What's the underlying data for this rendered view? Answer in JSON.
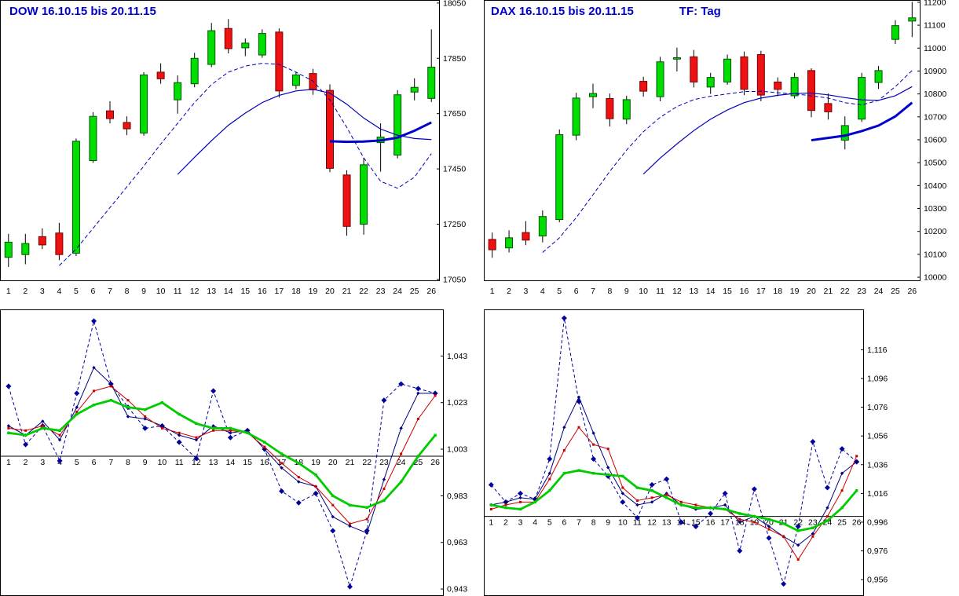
{
  "ui": {
    "background": "#ffffff",
    "title_color": "#0000cc",
    "up_color": "#00dd00",
    "down_color": "#ee1111",
    "wick_color": "#000000",
    "ma_color": "#0000bb"
  },
  "chart_data": [
    {
      "name": "dow-price",
      "type": "candlestick",
      "title": "DOW 16.10.15 bis 20.11.15",
      "x_labels": [
        "1",
        "2",
        "3",
        "4",
        "5",
        "6",
        "7",
        "8",
        "9",
        "10",
        "11",
        "12",
        "13",
        "14",
        "15",
        "16",
        "17",
        "18",
        "19",
        "20",
        "21",
        "22",
        "23",
        "24",
        "25",
        "26"
      ],
      "y_min": 17044,
      "y_max": 18061,
      "y_ticks": [
        {
          "v": 18050,
          "label": "18050"
        },
        {
          "v": 17850,
          "label": "17850"
        },
        {
          "v": 17650,
          "label": "17650"
        },
        {
          "v": 17450,
          "label": "17450"
        },
        {
          "v": 17250,
          "label": "17250"
        },
        {
          "v": 17050,
          "label": "17050"
        }
      ],
      "candles": {
        "open": [
          17130,
          17140,
          17205,
          17218,
          17145,
          17480,
          17660,
          17618,
          17580,
          17800,
          17700,
          17758,
          17828,
          17958,
          17888,
          17862,
          17945,
          17752,
          17795,
          17734,
          17428,
          17250,
          17545,
          17500,
          17728,
          17705
        ],
        "high": [
          17215,
          17215,
          17235,
          17255,
          17560,
          17655,
          17695,
          17640,
          17800,
          17832,
          17788,
          17870,
          17978,
          17992,
          17922,
          17955,
          17958,
          17800,
          17812,
          17756,
          17445,
          17490,
          17615,
          17735,
          17778,
          17955
        ],
        "low": [
          17095,
          17105,
          17160,
          17120,
          17135,
          17472,
          17615,
          17572,
          17570,
          17758,
          17650,
          17745,
          17818,
          17868,
          17858,
          17852,
          17708,
          17738,
          17718,
          17438,
          17208,
          17212,
          17440,
          17488,
          17698,
          17692
        ],
        "close": [
          17185,
          17180,
          17175,
          17140,
          17550,
          17640,
          17632,
          17595,
          17790,
          17776,
          17762,
          17850,
          17950,
          17885,
          17905,
          17940,
          17732,
          17790,
          17736,
          17452,
          17242,
          17465,
          17565,
          17718,
          17745,
          17818
        ]
      },
      "overlays": [
        {
          "name": "ma-dashed",
          "style": "dashed",
          "width": 1,
          "color": "#0000bb",
          "values": [
            null,
            null,
            null,
            17100,
            17160,
            17235,
            17310,
            17385,
            17460,
            17540,
            17615,
            17690,
            17755,
            17800,
            17822,
            17832,
            17828,
            17800,
            17768,
            17700,
            17600,
            17490,
            17405,
            17380,
            17420,
            17505
          ]
        },
        {
          "name": "ma-solid",
          "style": "solid",
          "width": 1.2,
          "color": "#0000bb",
          "values": [
            null,
            null,
            null,
            null,
            null,
            null,
            null,
            null,
            null,
            null,
            17430,
            17492,
            17552,
            17608,
            17652,
            17690,
            17716,
            17732,
            17738,
            17724,
            17684,
            17634,
            17594,
            17572,
            17560,
            17556
          ]
        },
        {
          "name": "ma-thick",
          "style": "solid",
          "width": 3,
          "color": "#0000cc",
          "values": [
            null,
            null,
            null,
            null,
            null,
            null,
            null,
            null,
            null,
            null,
            null,
            null,
            null,
            null,
            null,
            null,
            null,
            null,
            null,
            17550,
            17548,
            17549,
            17553,
            17563,
            17588,
            17618
          ]
        }
      ]
    },
    {
      "name": "dax-price",
      "type": "candlestick",
      "title": "DAX 16.10.15 bis 20.11.15",
      "subtitle": "TF: Tag",
      "x_labels": [
        "1",
        "2",
        "3",
        "4",
        "5",
        "6",
        "7",
        "8",
        "9",
        "10",
        "11",
        "12",
        "13",
        "14",
        "15",
        "16",
        "17",
        "18",
        "19",
        "20",
        "21",
        "22",
        "23",
        "24",
        "25",
        "26"
      ],
      "y_min": 9983,
      "y_max": 11210,
      "y_ticks": [
        {
          "v": 11200,
          "label": "11200"
        },
        {
          "v": 11100,
          "label": "11100"
        },
        {
          "v": 11000,
          "label": "11000"
        },
        {
          "v": 10900,
          "label": "10900"
        },
        {
          "v": 10800,
          "label": "10800"
        },
        {
          "v": 10700,
          "label": "10700"
        },
        {
          "v": 10600,
          "label": "10600"
        },
        {
          "v": 10500,
          "label": "10500"
        },
        {
          "v": 10400,
          "label": "10400"
        },
        {
          "v": 10300,
          "label": "10300"
        },
        {
          "v": 10200,
          "label": "10200"
        },
        {
          "v": 10100,
          "label": "10100"
        },
        {
          "v": 10000,
          "label": "10000"
        }
      ],
      "candles": {
        "open": [
          10165,
          10128,
          10195,
          10180,
          10252,
          10620,
          10788,
          10780,
          10690,
          10855,
          10788,
          10952,
          10962,
          10830,
          10852,
          10962,
          10972,
          10852,
          10792,
          10902,
          10758,
          10598,
          10690,
          10850,
          11038,
          11118
        ],
        "high": [
          10195,
          10205,
          10245,
          10292,
          10645,
          10805,
          10845,
          10802,
          10792,
          10875,
          10962,
          11002,
          10992,
          10892,
          10972,
          10985,
          10988,
          10872,
          10892,
          10912,
          10802,
          10702,
          10892,
          10922,
          11122,
          11202
        ],
        "low": [
          10085,
          10108,
          10140,
          10152,
          10240,
          10598,
          10738,
          10658,
          10668,
          10788,
          10768,
          10898,
          10828,
          10800,
          10840,
          10795,
          10768,
          10790,
          10780,
          10698,
          10688,
          10558,
          10678,
          10822,
          11018,
          11048
        ],
        "close": [
          10120,
          10172,
          10162,
          10265,
          10622,
          10782,
          10802,
          10692,
          10775,
          10812,
          10940,
          10958,
          10852,
          10872,
          10952,
          10820,
          10795,
          10820,
          10872,
          10728,
          10722,
          10662,
          10872,
          10902,
          11098,
          11132
        ]
      },
      "overlays": [
        {
          "name": "ma-dashed",
          "style": "dashed",
          "width": 1,
          "color": "#0000bb",
          "values": [
            null,
            null,
            null,
            10108,
            10172,
            10260,
            10360,
            10462,
            10555,
            10635,
            10698,
            10745,
            10775,
            10790,
            10800,
            10810,
            10812,
            10805,
            10800,
            10792,
            10782,
            10762,
            10752,
            10772,
            10832,
            10902
          ]
        },
        {
          "name": "ma-solid",
          "style": "solid",
          "width": 1.2,
          "color": "#0000bb",
          "values": [
            null,
            null,
            null,
            null,
            null,
            null,
            null,
            null,
            null,
            10450,
            10520,
            10582,
            10640,
            10690,
            10730,
            10762,
            10782,
            10794,
            10802,
            10804,
            10796,
            10784,
            10774,
            10772,
            10792,
            10832
          ]
        },
        {
          "name": "ma-thick",
          "style": "solid",
          "width": 3,
          "color": "#0000cc",
          "values": [
            null,
            null,
            null,
            null,
            null,
            null,
            null,
            null,
            null,
            null,
            null,
            null,
            null,
            null,
            null,
            null,
            null,
            null,
            null,
            10598,
            10608,
            10618,
            10638,
            10662,
            10702,
            10762
          ]
        }
      ]
    },
    {
      "name": "dow-ratio",
      "type": "line",
      "baseline": 1.0,
      "x_labels": [
        "1",
        "2",
        "3",
        "4",
        "5",
        "6",
        "7",
        "8",
        "9",
        "10",
        "11",
        "12",
        "13",
        "14",
        "15",
        "16",
        "17",
        "18",
        "19",
        "20",
        "21",
        "22",
        "23",
        "24",
        "25",
        "26"
      ],
      "y_min": 0.94,
      "y_max": 1.063,
      "y_ticks": [
        {
          "v": 1.043,
          "label": "1,043"
        },
        {
          "v": 1.023,
          "label": "1,023"
        },
        {
          "v": 1.003,
          "label": "1,003"
        },
        {
          "v": 0.983,
          "label": "0,983"
        },
        {
          "v": 0.963,
          "label": "0,963"
        },
        {
          "v": 0.943,
          "label": "0,943"
        }
      ],
      "series": [
        {
          "name": "ratio-raw-dashed",
          "color": "#0000a0",
          "style": "dashed",
          "width": 1,
          "marker": "diamond",
          "marker_size": 3.5,
          "values": [
            1.03,
            1.005,
            1.013,
            0.998,
            1.027,
            1.058,
            1.031,
            1.021,
            1.012,
            1.013,
            1.006,
            0.999,
            1.028,
            1.008,
            1.011,
            1.003,
            0.985,
            0.98,
            0.984,
            0.968,
            0.944,
            0.968,
            1.024,
            1.031,
            1.029,
            1.027
          ]
        },
        {
          "name": "ratio-fast",
          "color": "#000080",
          "style": "solid",
          "width": 1,
          "marker": "diamond",
          "marker_size": 2.2,
          "values": [
            1.013,
            1.009,
            1.015,
            1.007,
            1.021,
            1.038,
            1.031,
            1.017,
            1.016,
            1.013,
            1.009,
            1.007,
            1.013,
            1.01,
            1.011,
            1.003,
            0.995,
            0.989,
            0.987,
            0.974,
            0.97,
            0.967,
            0.99,
            1.012,
            1.027,
            1.027
          ]
        },
        {
          "name": "ratio-mid",
          "color": "#cc0000",
          "style": "solid",
          "width": 1,
          "marker": "square",
          "marker_size": 3,
          "values": [
            1.012,
            1.011,
            1.013,
            1.009,
            1.019,
            1.028,
            1.03,
            1.024,
            1.017,
            1.012,
            1.01,
            1.008,
            1.011,
            1.011,
            1.01,
            1.004,
            0.997,
            0.991,
            0.987,
            0.979,
            0.971,
            0.973,
            0.986,
            1.001,
            1.016,
            1.026
          ]
        },
        {
          "name": "ratio-slow",
          "color": "#00cc00",
          "style": "solid",
          "width": 2.8,
          "marker": "square",
          "marker_size": 3.4,
          "values": [
            1.01,
            1.009,
            1.012,
            1.011,
            1.018,
            1.022,
            1.024,
            1.021,
            1.02,
            1.023,
            1.018,
            1.014,
            1.012,
            1.012,
            1.01,
            1.006,
            1.001,
            0.997,
            0.992,
            0.983,
            0.979,
            0.978,
            0.981,
            0.989,
            1.0,
            1.009
          ]
        }
      ]
    },
    {
      "name": "dax-ratio",
      "type": "line",
      "baseline": 1.0,
      "x_labels": [
        "1",
        "2",
        "3",
        "4",
        "5",
        "6",
        "7",
        "8",
        "9",
        "10",
        "11",
        "12",
        "13",
        "14",
        "15",
        "16",
        "17",
        "18",
        "19",
        "20",
        "21",
        "22",
        "23",
        "24",
        "25",
        "26"
      ],
      "y_min": 0.9446,
      "y_max": 1.1441,
      "y_ticks": [
        {
          "v": 1.116,
          "label": "1,116"
        },
        {
          "v": 1.096,
          "label": "1,096"
        },
        {
          "v": 1.076,
          "label": "1,076"
        },
        {
          "v": 1.056,
          "label": "1,056"
        },
        {
          "v": 1.036,
          "label": "1,036"
        },
        {
          "v": 1.016,
          "label": "1,016"
        },
        {
          "v": 0.996,
          "label": "0,996"
        },
        {
          "v": 0.976,
          "label": "0,976"
        },
        {
          "v": 0.956,
          "label": "0,956"
        }
      ],
      "series": [
        {
          "name": "ratio-raw-dashed",
          "color": "#0000a0",
          "style": "dashed",
          "width": 1,
          "marker": "diamond",
          "marker_size": 3.5,
          "values": [
            1.022,
            1.01,
            1.016,
            1.012,
            1.04,
            1.138,
            1.08,
            1.04,
            1.028,
            1.01,
            0.999,
            1.022,
            1.026,
            0.996,
            0.993,
            1.002,
            1.016,
            0.976,
            1.019,
            0.985,
            0.953,
            0.993,
            1.052,
            1.02,
            1.047,
            1.038
          ]
        },
        {
          "name": "ratio-fast",
          "color": "#000080",
          "style": "solid",
          "width": 1,
          "marker": "diamond",
          "marker_size": 2.2,
          "values": [
            1.008,
            1.01,
            1.013,
            1.012,
            1.03,
            1.062,
            1.083,
            1.058,
            1.034,
            1.016,
            1.008,
            1.01,
            1.016,
            1.008,
            1.005,
            1.006,
            1.008,
            0.996,
            1.0,
            0.993,
            0.986,
            0.98,
            0.988,
            1.006,
            1.03,
            1.038
          ]
        },
        {
          "name": "ratio-mid",
          "color": "#cc0000",
          "style": "solid",
          "width": 1,
          "marker": "square",
          "marker_size": 3,
          "values": [
            1.005,
            1.008,
            1.01,
            1.01,
            1.026,
            1.046,
            1.062,
            1.05,
            1.047,
            1.02,
            1.011,
            1.013,
            1.015,
            1.01,
            1.008,
            1.006,
            1.005,
            0.998,
            0.996,
            0.991,
            0.986,
            0.97,
            0.986,
            1.0,
            1.018,
            1.042
          ]
        },
        {
          "name": "ratio-slow",
          "color": "#00cc00",
          "style": "solid",
          "width": 2.8,
          "marker": "square",
          "marker_size": 3.4,
          "values": [
            1.008,
            1.006,
            1.005,
            1.01,
            1.018,
            1.03,
            1.032,
            1.03,
            1.029,
            1.028,
            1.02,
            1.018,
            1.013,
            1.008,
            1.006,
            1.006,
            1.005,
            1.002,
            1.0,
            0.998,
            0.995,
            0.99,
            0.992,
            0.997,
            1.006,
            1.018
          ]
        }
      ]
    }
  ]
}
